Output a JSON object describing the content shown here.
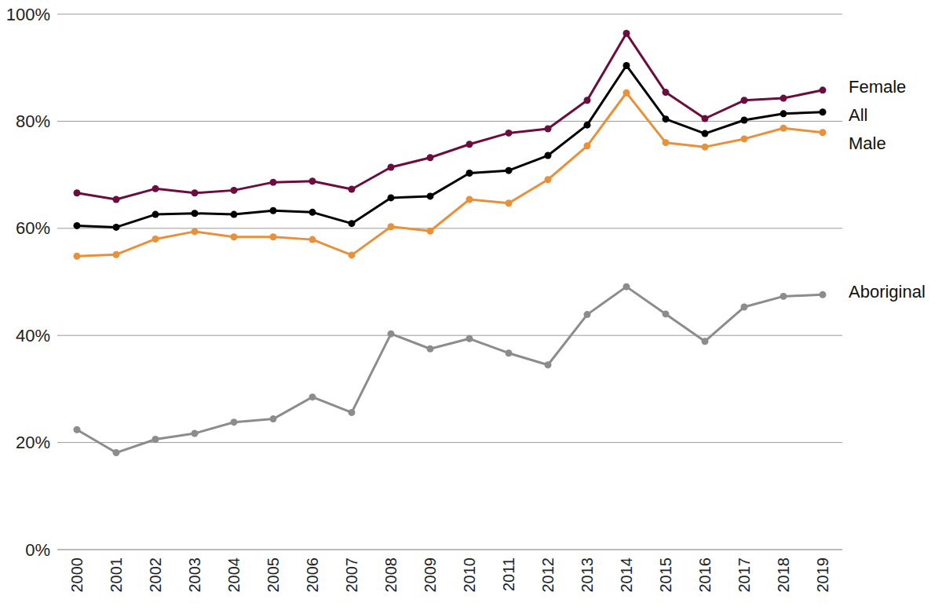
{
  "chart_data": {
    "type": "line",
    "categories": [
      "2000",
      "2001",
      "2002",
      "2003",
      "2004",
      "2005",
      "2006",
      "2007",
      "2008",
      "2009",
      "2010",
      "2011",
      "2012",
      "2013",
      "2014",
      "2015",
      "2016",
      "2017",
      "2018",
      "2019"
    ],
    "series": [
      {
        "name": "Female",
        "color": "#6b0d3f",
        "values": [
          66.6,
          65.4,
          67.4,
          66.6,
          67.1,
          68.6,
          68.8,
          67.3,
          71.4,
          73.2,
          75.7,
          77.8,
          78.6,
          83.9,
          96.4,
          85.4,
          80.5,
          83.9,
          84.3,
          85.8
        ]
      },
      {
        "name": "All",
        "color": "#000000",
        "values": [
          60.5,
          60.2,
          62.6,
          62.8,
          62.6,
          63.3,
          63.0,
          60.9,
          65.7,
          66.0,
          70.3,
          70.8,
          73.6,
          79.3,
          90.4,
          80.4,
          77.7,
          80.2,
          81.4,
          81.7
        ]
      },
      {
        "name": "Male",
        "color": "#e8913a",
        "values": [
          54.8,
          55.1,
          58.0,
          59.4,
          58.4,
          58.4,
          57.9,
          55.0,
          60.3,
          59.5,
          65.4,
          64.7,
          69.1,
          75.4,
          85.3,
          76.0,
          75.2,
          76.7,
          78.7,
          77.9
        ]
      },
      {
        "name": "Aboriginal",
        "color": "#8c8c8c",
        "values": [
          22.4,
          18.1,
          20.6,
          21.7,
          23.8,
          24.4,
          28.5,
          25.6,
          40.3,
          37.5,
          39.4,
          36.7,
          34.5,
          43.9,
          49.1,
          44.0,
          38.9,
          45.3,
          47.3,
          47.6
        ]
      }
    ],
    "ylim": [
      0,
      100
    ],
    "yticks": [
      {
        "value": 0,
        "label": "0%"
      },
      {
        "value": 20,
        "label": "20%"
      },
      {
        "value": 40,
        "label": "40%"
      },
      {
        "value": 60,
        "label": "60%"
      },
      {
        "value": 80,
        "label": "80%"
      },
      {
        "value": 100,
        "label": "100%"
      }
    ],
    "grid": true,
    "marker": "circle"
  }
}
